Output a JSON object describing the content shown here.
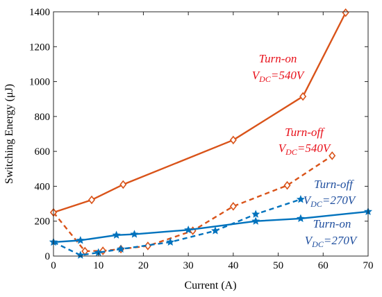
{
  "chart_data": {
    "type": "line",
    "title": "",
    "xlabel": "Current (A)",
    "ylabel": "Switching Energy (μJ)",
    "xlim": [
      0,
      70
    ],
    "ylim": [
      0,
      1400
    ],
    "xticks": [
      "0",
      "10",
      "20",
      "30",
      "40",
      "50",
      "60",
      "70"
    ],
    "yticks": [
      "0",
      "200",
      "400",
      "600",
      "800",
      "1000",
      "1200",
      "1400"
    ],
    "grid": false,
    "legend": "none",
    "series": [
      {
        "color": "#D95319",
        "linestyle": "solid",
        "marker": "diamond",
        "x": [
          0,
          8.5,
          15.5,
          40,
          55.5,
          65
        ],
        "y": [
          250,
          322,
          410,
          665,
          915,
          1395
        ]
      },
      {
        "color": "#D95319",
        "linestyle": "dashed",
        "marker": "diamond",
        "x": [
          0,
          7,
          11,
          15,
          21,
          31,
          40,
          52,
          62
        ],
        "y": [
          250,
          28,
          30,
          40,
          58,
          145,
          285,
          405,
          575
        ]
      },
      {
        "color": "#0072BD",
        "linestyle": "solid",
        "marker": "pentagram",
        "x": [
          0,
          6,
          14,
          18,
          30,
          45,
          55,
          70
        ],
        "y": [
          80,
          90,
          120,
          125,
          150,
          200,
          215,
          255
        ]
      },
      {
        "color": "#0072BD",
        "linestyle": "dashed",
        "marker": "pentagram",
        "x": [
          0,
          6,
          10,
          15,
          26,
          36,
          45,
          55
        ],
        "y": [
          80,
          5,
          20,
          40,
          80,
          145,
          240,
          325
        ]
      }
    ],
    "annotations": [
      {
        "line1": "Turn-on",
        "prefix": "V",
        "sub": "DC",
        "suffix": "=540V",
        "color": "#E8101A"
      },
      {
        "line1": "Turn-off",
        "prefix": "V",
        "sub": "DC",
        "suffix": "=540V",
        "color": "#E8101A"
      },
      {
        "line1": "Turn-off",
        "prefix": "V",
        "sub": "DC",
        "suffix": "=270V",
        "color": "#1F4E9E"
      },
      {
        "line1": "Turn-on",
        "prefix": "V",
        "sub": "DC",
        "suffix": "=270V",
        "color": "#1F4E9E"
      }
    ]
  }
}
